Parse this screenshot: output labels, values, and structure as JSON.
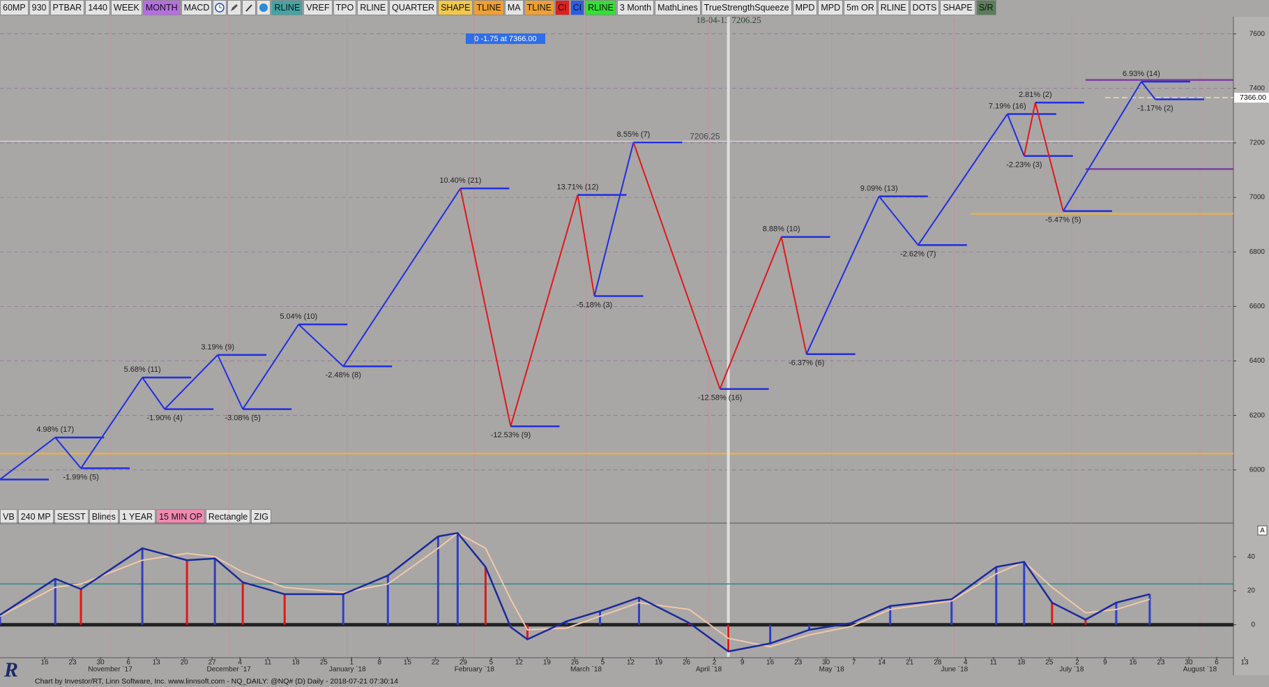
{
  "toolbar": {
    "buttons_left": [
      {
        "label": "60MP"
      },
      {
        "label": "930"
      },
      {
        "label": "PTBAR"
      },
      {
        "label": "1440"
      },
      {
        "label": "WEEK"
      },
      {
        "label": "MONTH",
        "bg": "#b56fe0"
      },
      {
        "label": "MACD"
      }
    ],
    "buttons_right": [
      {
        "label": "RLINE",
        "bg": "#45a3a3"
      },
      {
        "label": "VREF"
      },
      {
        "label": "TPO"
      },
      {
        "label": "RLINE"
      },
      {
        "label": "QUARTER"
      },
      {
        "label": "SHAPE",
        "bg": "#f3c84a"
      },
      {
        "label": "TLINE",
        "bg": "#f0a030"
      },
      {
        "label": "MA"
      },
      {
        "label": "TLINE",
        "bg": "#f0a030"
      },
      {
        "label": "CI",
        "bg": "#e02020"
      },
      {
        "label": "CI",
        "bg": "#2a5ee8"
      },
      {
        "label": "RLINE",
        "bg": "#33e033"
      },
      {
        "label": "3 Month"
      },
      {
        "label": "MathLines"
      },
      {
        "label": "TrueStrengthSqueeze"
      },
      {
        "label": "MPD"
      },
      {
        "label": "MPD"
      },
      {
        "label": "5m OR"
      },
      {
        "label": "RLINE"
      },
      {
        "label": "DOTS"
      },
      {
        "label": "SHAPE"
      },
      {
        "label": "S/R",
        "bg": "#5a7e5a"
      }
    ],
    "lower_buttons": [
      {
        "label": "VB"
      },
      {
        "label": "240 MP"
      },
      {
        "label": "SESST"
      },
      {
        "label": "Blines"
      },
      {
        "label": "1 YEAR"
      },
      {
        "label": "15 MIN OP",
        "bg": "#f08ab0"
      },
      {
        "label": "Rectangle"
      },
      {
        "label": "ZIG"
      }
    ]
  },
  "status": "Chart by Investor/RT, Linn Software, Inc. www.linnsoft.com - NQ_DAILY: @NQ# (D) Daily - 2018-07-21 07:30:14",
  "logo": "R",
  "chart_data": [
    {
      "type": "line",
      "cursor_readout": "18-04-13 7206.25",
      "info_box": "0  -1.75 at 7366.00",
      "crosshair": {
        "x": 24.5,
        "y": 7206.25
      },
      "last_price": {
        "value": 7366,
        "label": "7366.00"
      },
      "xlim": [
        -1.6,
        42.6
      ],
      "ylim": [
        5810,
        7663
      ],
      "yticks": [
        6000,
        6200,
        6400,
        6600,
        6800,
        7000,
        7200,
        7400,
        7600
      ],
      "levels": [
        {
          "value": 6060,
          "from": -1.6,
          "to": 42.6,
          "color": "#e8b24a"
        },
        {
          "value": 6940,
          "from": 33.2,
          "to": 42.6,
          "color": "#e8b24a"
        },
        {
          "value": 7431,
          "from": 37.3,
          "to": 42.6,
          "color": "#7b3fa0"
        },
        {
          "value": 7104,
          "from": 37.3,
          "to": 42.6,
          "color": "#7b3fa0"
        }
      ],
      "series": [
        {
          "name": "ZIG",
          "color": "#1f2fe0",
          "x": [
            -1.6,
            0.38,
            1.3,
            3.5,
            4.3,
            6.2,
            7.1,
            9.1,
            10.7,
            14.9,
            16.7,
            19.1,
            19.7,
            21.1,
            24.2,
            26.4,
            27.3,
            29.9,
            31.3,
            34.5,
            35.1,
            35.5,
            36.5,
            39.3,
            39.8
          ],
          "values": [
            5965,
            6119,
            6006,
            6339,
            6223,
            6422,
            6223,
            6534,
            6380,
            7033,
            6160,
            7009,
            6638,
            7202,
            6297,
            6855,
            6425,
            7004,
            6825,
            7306,
            7152,
            7348,
            6950,
            7425,
            7360
          ],
          "labels": [
            null,
            "4.98% (17)",
            "-1.99% (5)",
            "5.68% (11)",
            "-1.90% (4)",
            "3.19% (9)",
            "-3.08% (5)",
            "5.04% (10)",
            "-2.48% (8)",
            "10.40% (21)",
            "-12.53% (9)",
            "13.71% (12)",
            "-5.18% (3)",
            "8.55% (7)",
            "-12.58% (16)",
            "8.88% (10)",
            "-6.37% (6)",
            "9.09% (13)",
            "-2.62% (7)",
            "7.19% (16)",
            "-2.23% (3)",
            "2.81% (2)",
            "-5.47% (5)",
            "6.93% (14)",
            "-1.17% (2)"
          ],
          "segment_colors": [
            "#1f2fe0",
            "#1f2fe0",
            "#1f2fe0",
            "#1f2fe0",
            "#1f2fe0",
            "#1f2fe0",
            "#1f2fe0",
            "#1f2fe0",
            "#1f2fe0",
            "#e01818",
            "#e01818",
            "#e01818",
            "#1f2fe0",
            "#e01818",
            "#e01818",
            "#e01818",
            "#1f2fe0",
            "#1f2fe0",
            "#1f2fe0",
            "#1f2fe0",
            "#e01818",
            "#e01818",
            "#1f2fe0",
            "#1f2fe0"
          ]
        }
      ]
    },
    {
      "type": "macd",
      "scale_button": "A",
      "xlim": [
        -1.6,
        42.6
      ],
      "ylim": [
        -19,
        59
      ],
      "yticks": [
        0,
        20,
        40
      ],
      "levels": [
        {
          "value": 24,
          "color": "#2a8a8a"
        }
      ],
      "bar_colors": {
        "up": "#2b3fc8",
        "down": "#e01818"
      },
      "series": [
        {
          "name": "MACD",
          "color": "#1a2a9a",
          "x": [
            -1.6,
            0.38,
            1.3,
            3.5,
            5.1,
            6.1,
            7.1,
            8.6,
            10.7,
            12.3,
            14.1,
            14.8,
            15.8,
            16.7,
            17.3,
            18.7,
            19.9,
            21.3,
            23.1,
            24.5,
            26.0,
            27.4,
            28.9,
            30.3,
            32.5,
            34.1,
            35.1,
            36.1,
            37.3,
            38.4,
            39.6
          ],
          "values": [
            5.7,
            27,
            21,
            45,
            38,
            39,
            25,
            18,
            18,
            29,
            52,
            54,
            34,
            -1.4,
            -8.6,
            2,
            8,
            16,
            1,
            -15.7,
            -11,
            -3,
            1,
            11,
            15,
            34,
            37,
            13,
            3,
            13,
            18
          ]
        },
        {
          "name": "Signal",
          "color": "#f2c9a8",
          "x": [
            -1.6,
            0.38,
            1.3,
            3.5,
            5.1,
            6.1,
            7.1,
            8.6,
            10.7,
            12.3,
            14.1,
            14.8,
            15.8,
            16.7,
            17.3,
            18.7,
            19.9,
            21.3,
            23.1,
            24.5,
            26.0,
            27.4,
            28.9,
            30.3,
            32.5,
            34.1,
            35.1,
            36.1,
            37.3,
            38.4,
            39.6
          ],
          "values": [
            5,
            22,
            24,
            38,
            42,
            40,
            31,
            22,
            19,
            24,
            45,
            54,
            45,
            15,
            -3,
            -2,
            5,
            13,
            9,
            -8,
            -13,
            -6,
            -1,
            9,
            14,
            30,
            37,
            22,
            7,
            9,
            15
          ]
        }
      ],
      "xticks": [
        {
          "value": 0,
          "label": "16"
        },
        {
          "value": 1,
          "label": "23"
        },
        {
          "value": 2,
          "label": "30"
        },
        {
          "value": 3,
          "label": "6"
        },
        {
          "value": 4,
          "label": "13"
        },
        {
          "value": 5,
          "label": "20"
        },
        {
          "value": 6,
          "label": "27"
        },
        {
          "value": 7,
          "label": "4"
        },
        {
          "value": 8,
          "label": "11"
        },
        {
          "value": 9,
          "label": "18"
        },
        {
          "value": 10,
          "label": "25"
        },
        {
          "value": 11,
          "label": "1"
        },
        {
          "value": 12,
          "label": "8"
        },
        {
          "value": 13,
          "label": "15"
        },
        {
          "value": 14,
          "label": "22"
        },
        {
          "value": 15,
          "label": "29"
        },
        {
          "value": 16,
          "label": "5"
        },
        {
          "value": 17,
          "label": "12"
        },
        {
          "value": 18,
          "label": "19"
        },
        {
          "value": 19,
          "label": "26"
        },
        {
          "value": 20,
          "label": "5"
        },
        {
          "value": 21,
          "label": "12"
        },
        {
          "value": 22,
          "label": "19"
        },
        {
          "value": 23,
          "label": "26"
        },
        {
          "value": 24,
          "label": "2"
        },
        {
          "value": 25,
          "label": "9"
        },
        {
          "value": 26,
          "label": "16"
        },
        {
          "value": 27,
          "label": "23"
        },
        {
          "value": 28,
          "label": "30"
        },
        {
          "value": 29,
          "label": "7"
        },
        {
          "value": 30,
          "label": "14"
        },
        {
          "value": 31,
          "label": "21"
        },
        {
          "value": 32,
          "label": "28"
        },
        {
          "value": 33,
          "label": "4"
        },
        {
          "value": 34,
          "label": "11"
        },
        {
          "value": 35,
          "label": "18"
        },
        {
          "value": 36,
          "label": "25"
        },
        {
          "value": 37,
          "label": "2"
        },
        {
          "value": 38,
          "label": "9"
        },
        {
          "value": 39,
          "label": "16"
        },
        {
          "value": 40,
          "label": "23"
        },
        {
          "value": 41,
          "label": "30"
        },
        {
          "value": 42,
          "label": "6"
        },
        {
          "value": 43,
          "label": "13"
        }
      ],
      "month_ticks": [
        {
          "value": 2.35,
          "label": "November `17"
        },
        {
          "value": 6.6,
          "label": "December `17"
        },
        {
          "value": 10.85,
          "label": "January `18"
        },
        {
          "value": 15.4,
          "label": "February `18"
        },
        {
          "value": 19.4,
          "label": "March `18"
        },
        {
          "value": 23.8,
          "label": "April `18"
        },
        {
          "value": 28.2,
          "label": "May `18"
        },
        {
          "value": 32.6,
          "label": "June `18"
        },
        {
          "value": 36.8,
          "label": "July `18"
        },
        {
          "value": 41.4,
          "label": "August `18"
        }
      ]
    }
  ]
}
